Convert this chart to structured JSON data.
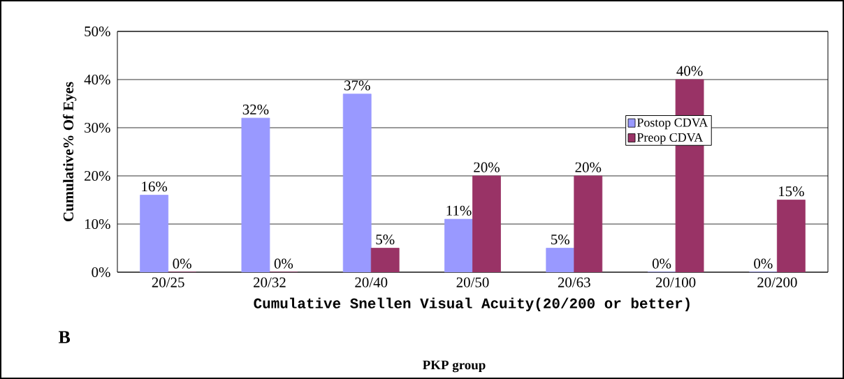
{
  "chart_data": {
    "type": "bar",
    "xlabel": "Cumulative Snellen Visual Acuity(20/200 or better)",
    "ylabel": "Cumulative%  Of Eyes",
    "categories": [
      "20/25",
      "20/32",
      "20/40",
      "20/50",
      "20/63",
      "20/100",
      "20/200"
    ],
    "series": [
      {
        "name": "Postop CDVA",
        "color": "#9999ff",
        "values": [
          16,
          32,
          37,
          11,
          5,
          0,
          0
        ],
        "value_labels": [
          "16%",
          "32%",
          "37%",
          "11%",
          "5%",
          "0%",
          "0%"
        ]
      },
      {
        "name": "Preop CDVA",
        "color": "#993366",
        "values": [
          0,
          0,
          5,
          20,
          20,
          40,
          15
        ],
        "value_labels": [
          "0%",
          "0%",
          "5%",
          "20%",
          "20%",
          "40%",
          "15%"
        ]
      }
    ],
    "ylim": [
      0,
      50
    ],
    "yticks": [
      {
        "value": 0,
        "label": "0%"
      },
      {
        "value": 10,
        "label": "10%"
      },
      {
        "value": 20,
        "label": "20%"
      },
      {
        "value": 30,
        "label": "30%"
      },
      {
        "value": 40,
        "label": "40%"
      },
      {
        "value": 50,
        "label": "50%"
      }
    ],
    "grid": "y",
    "legend": "right",
    "annotations": [
      "B",
      "PKP group"
    ]
  }
}
